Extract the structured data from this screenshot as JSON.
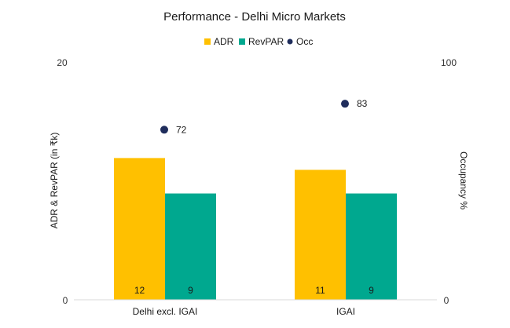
{
  "chart_data": {
    "type": "bar",
    "title": "Performance - Delhi Micro Markets",
    "categories": [
      "Delhi excl. IGAI",
      "IGAI"
    ],
    "series": [
      {
        "name": "ADR",
        "values": [
          12,
          11
        ],
        "color": "#FFC000",
        "axis": "left",
        "kind": "bar"
      },
      {
        "name": "RevPAR",
        "values": [
          9,
          9
        ],
        "color": "#00A88F",
        "axis": "left",
        "kind": "bar"
      },
      {
        "name": "Occ",
        "values": [
          72,
          83
        ],
        "color": "#1F2D5C",
        "axis": "right",
        "kind": "scatter"
      }
    ],
    "ylabel": "ADR & RevPAR (in ₹k)",
    "ylabel_right": "Occupancy %",
    "ylim": [
      0,
      20
    ],
    "ylim_right": [
      0,
      100
    ],
    "yticks": [
      "0",
      "20"
    ],
    "yticks_right": [
      "0",
      "100"
    ],
    "legend_position": "top-center",
    "grid": false
  }
}
